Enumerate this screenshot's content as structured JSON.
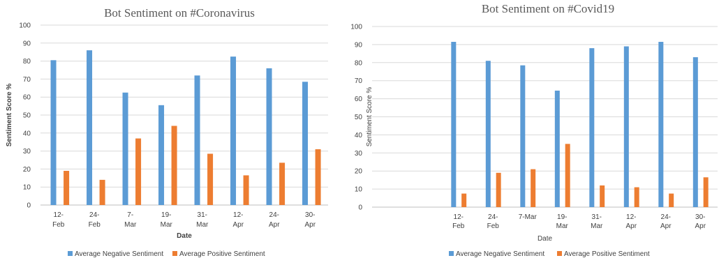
{
  "colors": {
    "negative": "#5b9bd5",
    "positive": "#ed7d31",
    "grid": "#d9d9d9",
    "axis": "#bfbfbf"
  },
  "chart_data": [
    {
      "type": "bar",
      "title": "Bot Sentiment on #Coronavirus",
      "xlabel": "Date",
      "ylabel": "Sentiment Score %",
      "ylim": [
        0,
        100
      ],
      "yticks": [
        0,
        10,
        20,
        30,
        40,
        50,
        60,
        70,
        80,
        90,
        100
      ],
      "grid": true,
      "legend_position": "bottom",
      "categories": [
        [
          "12-",
          "Feb"
        ],
        [
          "24-",
          "Feb"
        ],
        [
          "7-",
          "Mar"
        ],
        [
          "19-",
          "Mar"
        ],
        [
          "31-",
          "Mar"
        ],
        [
          "12-",
          "Apr"
        ],
        [
          "24-",
          "Apr"
        ],
        [
          "30-",
          "Apr"
        ]
      ],
      "series": [
        {
          "name": "Average Negative Sentiment",
          "values": [
            80.5,
            86,
            62.5,
            55.5,
            72,
            82.5,
            76,
            68.5
          ]
        },
        {
          "name": "Average Positive Sentiment",
          "values": [
            19,
            14,
            37,
            44,
            28.5,
            16.5,
            23.5,
            31
          ]
        }
      ]
    },
    {
      "type": "bar",
      "title": "Bot Sentiment on #Covid19",
      "xlabel": "Date",
      "ylabel": "Sentiment Score %",
      "ylim": [
        0,
        100
      ],
      "yticks": [
        0,
        10,
        20,
        30,
        40,
        50,
        60,
        70,
        80,
        90,
        100
      ],
      "grid": true,
      "legend_position": "bottom",
      "categories": [
        [
          "",
          ""
        ],
        [
          "",
          ""
        ],
        [
          "12-",
          "Feb"
        ],
        [
          "24-",
          "Feb"
        ],
        [
          "7-Mar",
          ""
        ],
        [
          "19-",
          "Mar"
        ],
        [
          "31-",
          "Mar"
        ],
        [
          "12-",
          "Apr"
        ],
        [
          "24-",
          "Apr"
        ],
        [
          "30-",
          "Apr"
        ]
      ],
      "series": [
        {
          "name": "Average Negative Sentiment",
          "values": [
            null,
            null,
            91.5,
            81,
            78.5,
            64.5,
            88,
            89,
            91.5,
            83
          ]
        },
        {
          "name": "Average Positive Sentiment",
          "values": [
            null,
            null,
            7.5,
            19,
            21,
            35,
            12,
            11,
            7.5,
            16.5
          ]
        }
      ]
    }
  ]
}
